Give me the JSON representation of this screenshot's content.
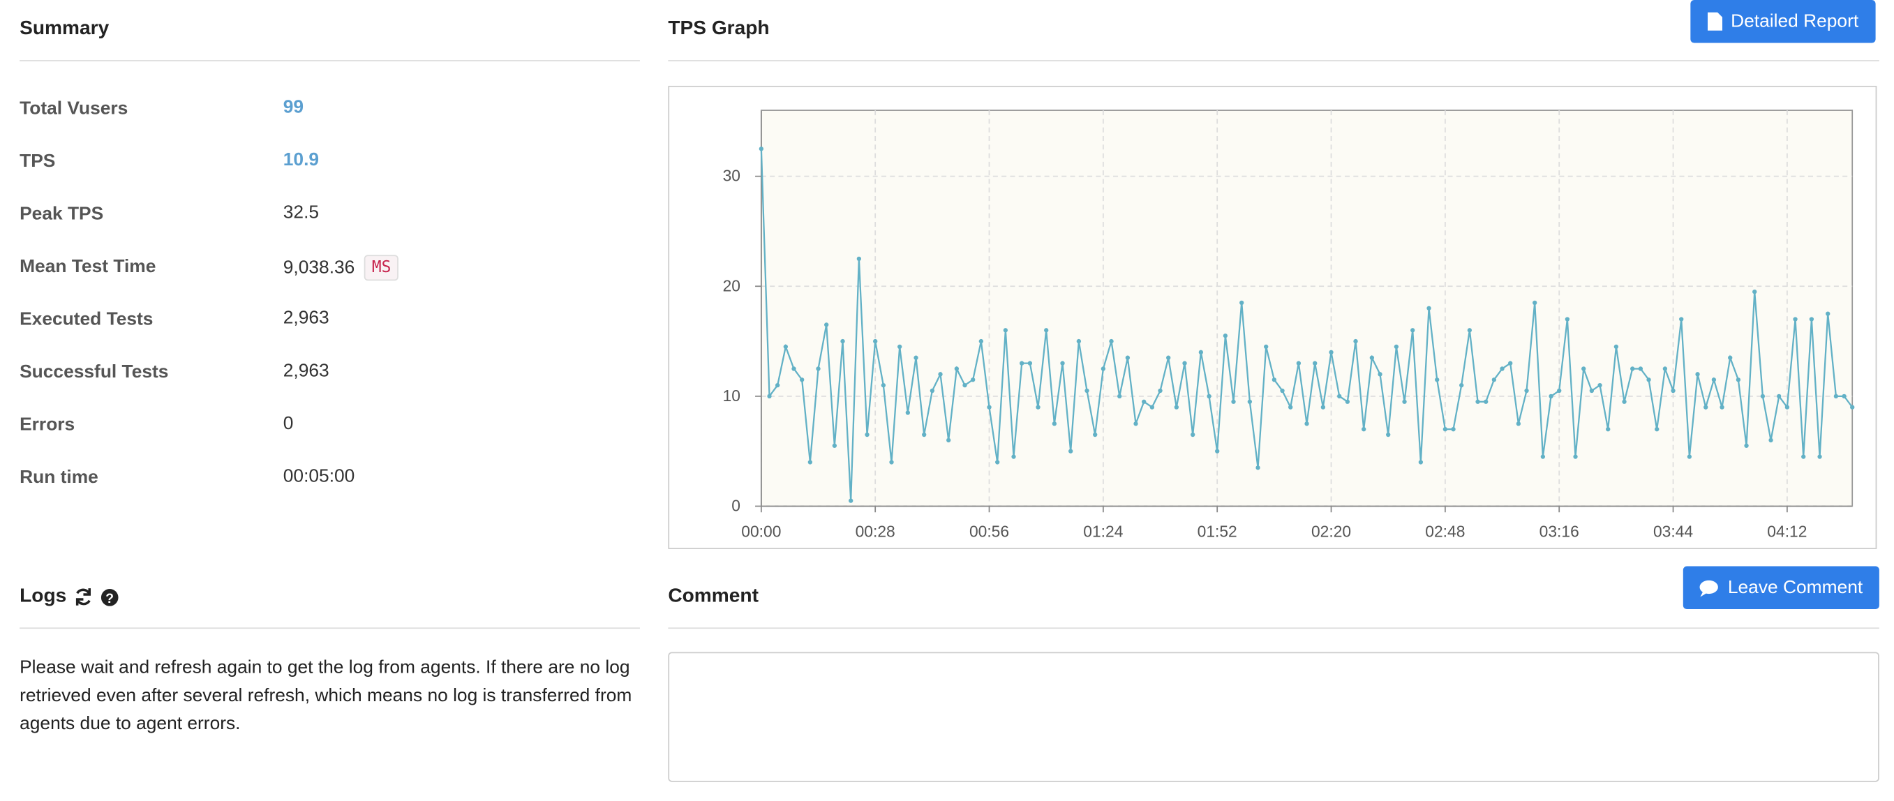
{
  "summary": {
    "title": "Summary",
    "rows": [
      {
        "label": "Total Vusers",
        "value": "99"
      },
      {
        "label": "TPS",
        "value": "10.9"
      },
      {
        "label": "Peak TPS",
        "value": "32.5"
      },
      {
        "label": "Mean Test Time",
        "value": "9,038.36",
        "unit": "MS"
      },
      {
        "label": "Executed Tests",
        "value": "2,963"
      },
      {
        "label": "Successful Tests",
        "value": "2,963"
      },
      {
        "label": "Errors",
        "value": "0"
      },
      {
        "label": "Run time",
        "value": "00:05:00"
      }
    ]
  },
  "tps_graph": {
    "title": "TPS Graph",
    "button": "Detailed Report"
  },
  "chart_data": {
    "type": "line",
    "color": "#62b1c6",
    "grid": true,
    "x": [
      0,
      2,
      4,
      6,
      8,
      10,
      12,
      14,
      16,
      18,
      20,
      22,
      24,
      26,
      28,
      30,
      32,
      34,
      36,
      38,
      40,
      42,
      44,
      46,
      48,
      50,
      52,
      54,
      56,
      58,
      60,
      62,
      64,
      66,
      68,
      70,
      72,
      74,
      76,
      78,
      80,
      82,
      84,
      86,
      88,
      90,
      92,
      94,
      96,
      98,
      100,
      102,
      104,
      106,
      108,
      110,
      112,
      114,
      116,
      118,
      120,
      122,
      124,
      126,
      128,
      130,
      132,
      134,
      136,
      138,
      140,
      142,
      144,
      146,
      148,
      150,
      152,
      154,
      156,
      158,
      160,
      162,
      164,
      166,
      168,
      170,
      172,
      174,
      176,
      178,
      180,
      182,
      184,
      186,
      188,
      190,
      192,
      194,
      196,
      198,
      200,
      202,
      204,
      206,
      208,
      210,
      212,
      214,
      216,
      218,
      220,
      222,
      224,
      226,
      228,
      230,
      232,
      234,
      236,
      238,
      240,
      242,
      244,
      246,
      248,
      250,
      252,
      254,
      256,
      258,
      260,
      262,
      264,
      266,
      268
    ],
    "values": [
      32.5,
      10,
      11,
      14.5,
      12.5,
      11.5,
      4,
      12.5,
      16.5,
      5.5,
      15,
      0.5,
      22.5,
      6.5,
      15,
      11,
      4,
      14.5,
      8.5,
      13.5,
      6.5,
      10.5,
      12,
      6,
      12.5,
      11,
      11.5,
      15,
      9,
      4,
      16,
      4.5,
      13,
      13,
      9,
      16,
      7.5,
      13,
      5,
      15,
      10.5,
      6.5,
      12.5,
      15,
      10,
      13.5,
      7.5,
      9.5,
      9,
      10.5,
      13.5,
      9,
      13,
      6.5,
      14,
      10,
      5,
      15.5,
      9.5,
      18.5,
      9.5,
      3.5,
      14.5,
      11.5,
      10.5,
      9,
      13,
      7.5,
      13,
      9,
      14,
      10,
      9.5,
      15,
      7,
      13.5,
      12,
      6.5,
      14.5,
      9.5,
      16,
      4,
      18,
      11.5,
      7,
      7,
      11,
      16,
      9.5,
      9.5,
      11.5,
      12.5,
      13,
      7.5,
      10.5,
      18.5,
      4.5,
      10,
      10.5,
      17,
      4.5,
      12.5,
      10.5,
      11,
      7,
      14.5,
      9.5,
      12.5,
      12.5,
      11.5,
      7,
      12.5,
      10.5,
      17,
      4.5,
      12,
      9,
      11.5,
      9,
      13.5,
      11.5,
      5.5,
      19.5,
      10,
      6,
      10,
      9,
      17,
      4.5,
      17,
      4.5,
      17.5,
      10,
      10,
      9
    ],
    "xlim": [
      0,
      268
    ],
    "xticks": [
      {
        "value": 0,
        "label": "00:00"
      },
      {
        "value": 28,
        "label": "00:28"
      },
      {
        "value": 56,
        "label": "00:56"
      },
      {
        "value": 84,
        "label": "01:24"
      },
      {
        "value": 112,
        "label": "01:52"
      },
      {
        "value": 140,
        "label": "02:20"
      },
      {
        "value": 168,
        "label": "02:48"
      },
      {
        "value": 196,
        "label": "03:16"
      },
      {
        "value": 224,
        "label": "03:44"
      },
      {
        "value": 252,
        "label": "04:12"
      }
    ],
    "ylim": [
      0,
      36
    ],
    "yticks": [
      0,
      10,
      20,
      30
    ]
  },
  "logs": {
    "title": "Logs",
    "message": "Please wait and refresh again to get the log from agents. If there are no log retrieved even after several refresh, which means no log is transferred from agents due to agent errors."
  },
  "comment": {
    "title": "Comment",
    "button": "Leave Comment"
  }
}
